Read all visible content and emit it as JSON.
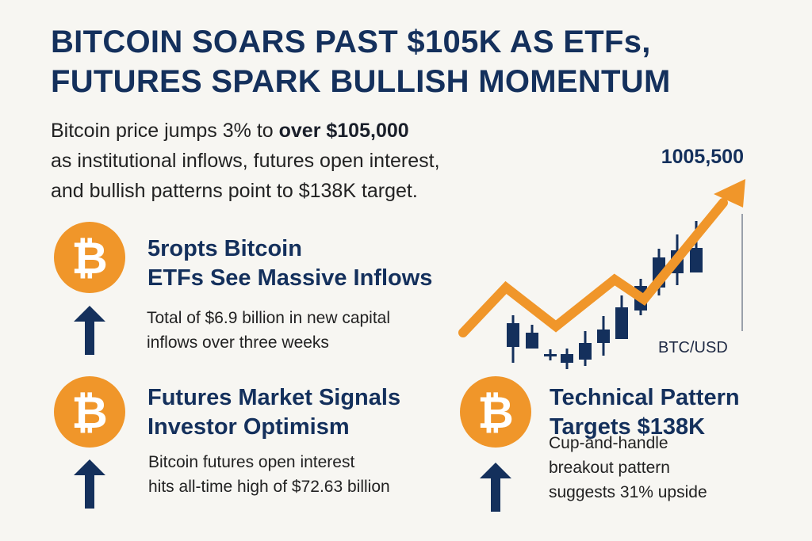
{
  "headline": {
    "line1": "BITCOIN SOARS PAST $105K AS ETFs,",
    "line2": "FUTURES SPARK BULLISH MOMENTUM"
  },
  "subtitle": {
    "prefix": "Bitcoin price jumps 3% to ",
    "bold": "over $105,000",
    "line2": "as institutional inflows, futures open interest,",
    "line3": "and bullish patterns point to $138K target."
  },
  "chart": {
    "price_label": "1005,500",
    "pair_label": "BTC/USD",
    "colors": {
      "trend": "#f0962a",
      "candle": "#14305c"
    }
  },
  "cards": [
    {
      "icon": "bitcoin-icon",
      "trend_icon": "up-arrow-icon",
      "title_line1": "5ropts Bitcoin",
      "title_line2": "ETFs See Massive Inflows",
      "body_line1": "Total of $6.9 billion in new capital",
      "body_line2": "inflows over three weeks"
    },
    {
      "icon": "bitcoin-icon",
      "trend_icon": "up-arrow-icon",
      "title_line1": "Futures Market Signals",
      "title_line2": "Investor Optimism",
      "body_line1": "Bitcoin futures open interest",
      "body_line2": "hits all-time high of $72.63 billion"
    },
    {
      "icon": "bitcoin-icon",
      "trend_icon": "up-arrow-icon",
      "title_line1": "Technical Pattern",
      "title_line2": "Targets $138K",
      "body_line1": "Cup-and-handle",
      "body_line2": "breakout pattern",
      "body_line3": "suggests 31% upside"
    }
  ],
  "symbols": {
    "bitcoin": "₿"
  },
  "colors": {
    "navy": "#14305c",
    "orange": "#f0962a",
    "background": "#f7f6f2"
  }
}
